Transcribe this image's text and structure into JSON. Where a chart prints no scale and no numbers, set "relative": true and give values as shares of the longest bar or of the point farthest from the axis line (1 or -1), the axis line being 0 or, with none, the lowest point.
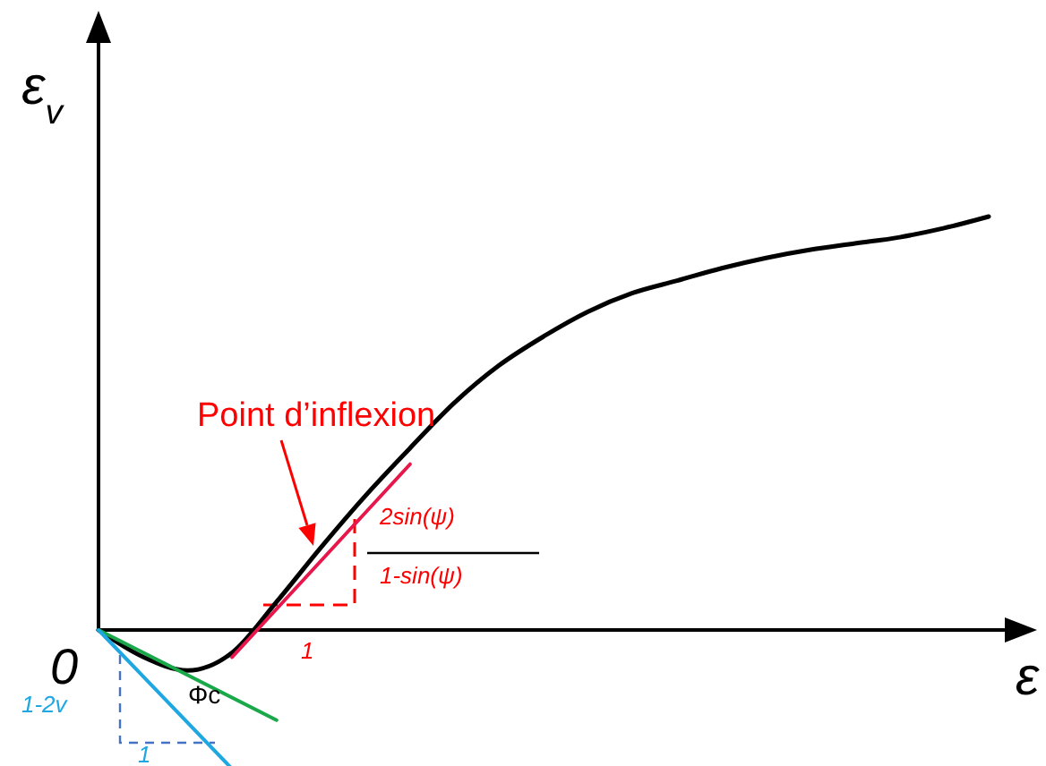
{
  "chart_data": {
    "type": "line",
    "relative": true,
    "ylabel": "ε$_{v}$",
    "xlabel": "ε",
    "categories": [
      null,
      null,
      null,
      null,
      null,
      null,
      null,
      null,
      null,
      null,
      null,
      null,
      null,
      null,
      null,
      null,
      null,
      null,
      null,
      null,
      null
    ],
    "series": [
      {
        "color": "#000000",
        "values": [
          0,
          -0.065,
          -0.098,
          -0.055,
          0.068,
          0.2,
          0.325,
          0.44,
          0.55,
          0.64,
          0.71,
          0.77,
          0.815,
          0.845,
          0.875,
          0.9,
          0.92,
          0.935,
          0.95,
          0.972,
          1.0
        ]
      },
      {
        "color": "#e8174b",
        "values": [
          null,
          null,
          null,
          -0.066,
          null,
          null,
          null,
          0.401,
          null,
          null,
          null,
          null,
          null,
          null,
          null,
          null,
          null,
          null,
          null,
          null,
          null
        ]
      },
      {
        "color": "#1aa84a",
        "values": [
          0,
          null,
          null,
          null,
          -0.218,
          null,
          null,
          null,
          null,
          null,
          null,
          null,
          null,
          null,
          null,
          null,
          null,
          null,
          null,
          null,
          null
        ]
      },
      {
        "color": "#1ea7e0",
        "values": [
          0,
          null,
          null,
          -0.336,
          null,
          null,
          null,
          null,
          null,
          null,
          null,
          null,
          null,
          null,
          null,
          null,
          null,
          null,
          null,
          null,
          null
        ]
      }
    ],
    "annotations": [
      "Point d’inflexion",
      "2sin(ψ)",
      "1-sin(ψ)",
      "1",
      "Φc",
      "1-2v",
      "1",
      "0"
    ]
  }
}
